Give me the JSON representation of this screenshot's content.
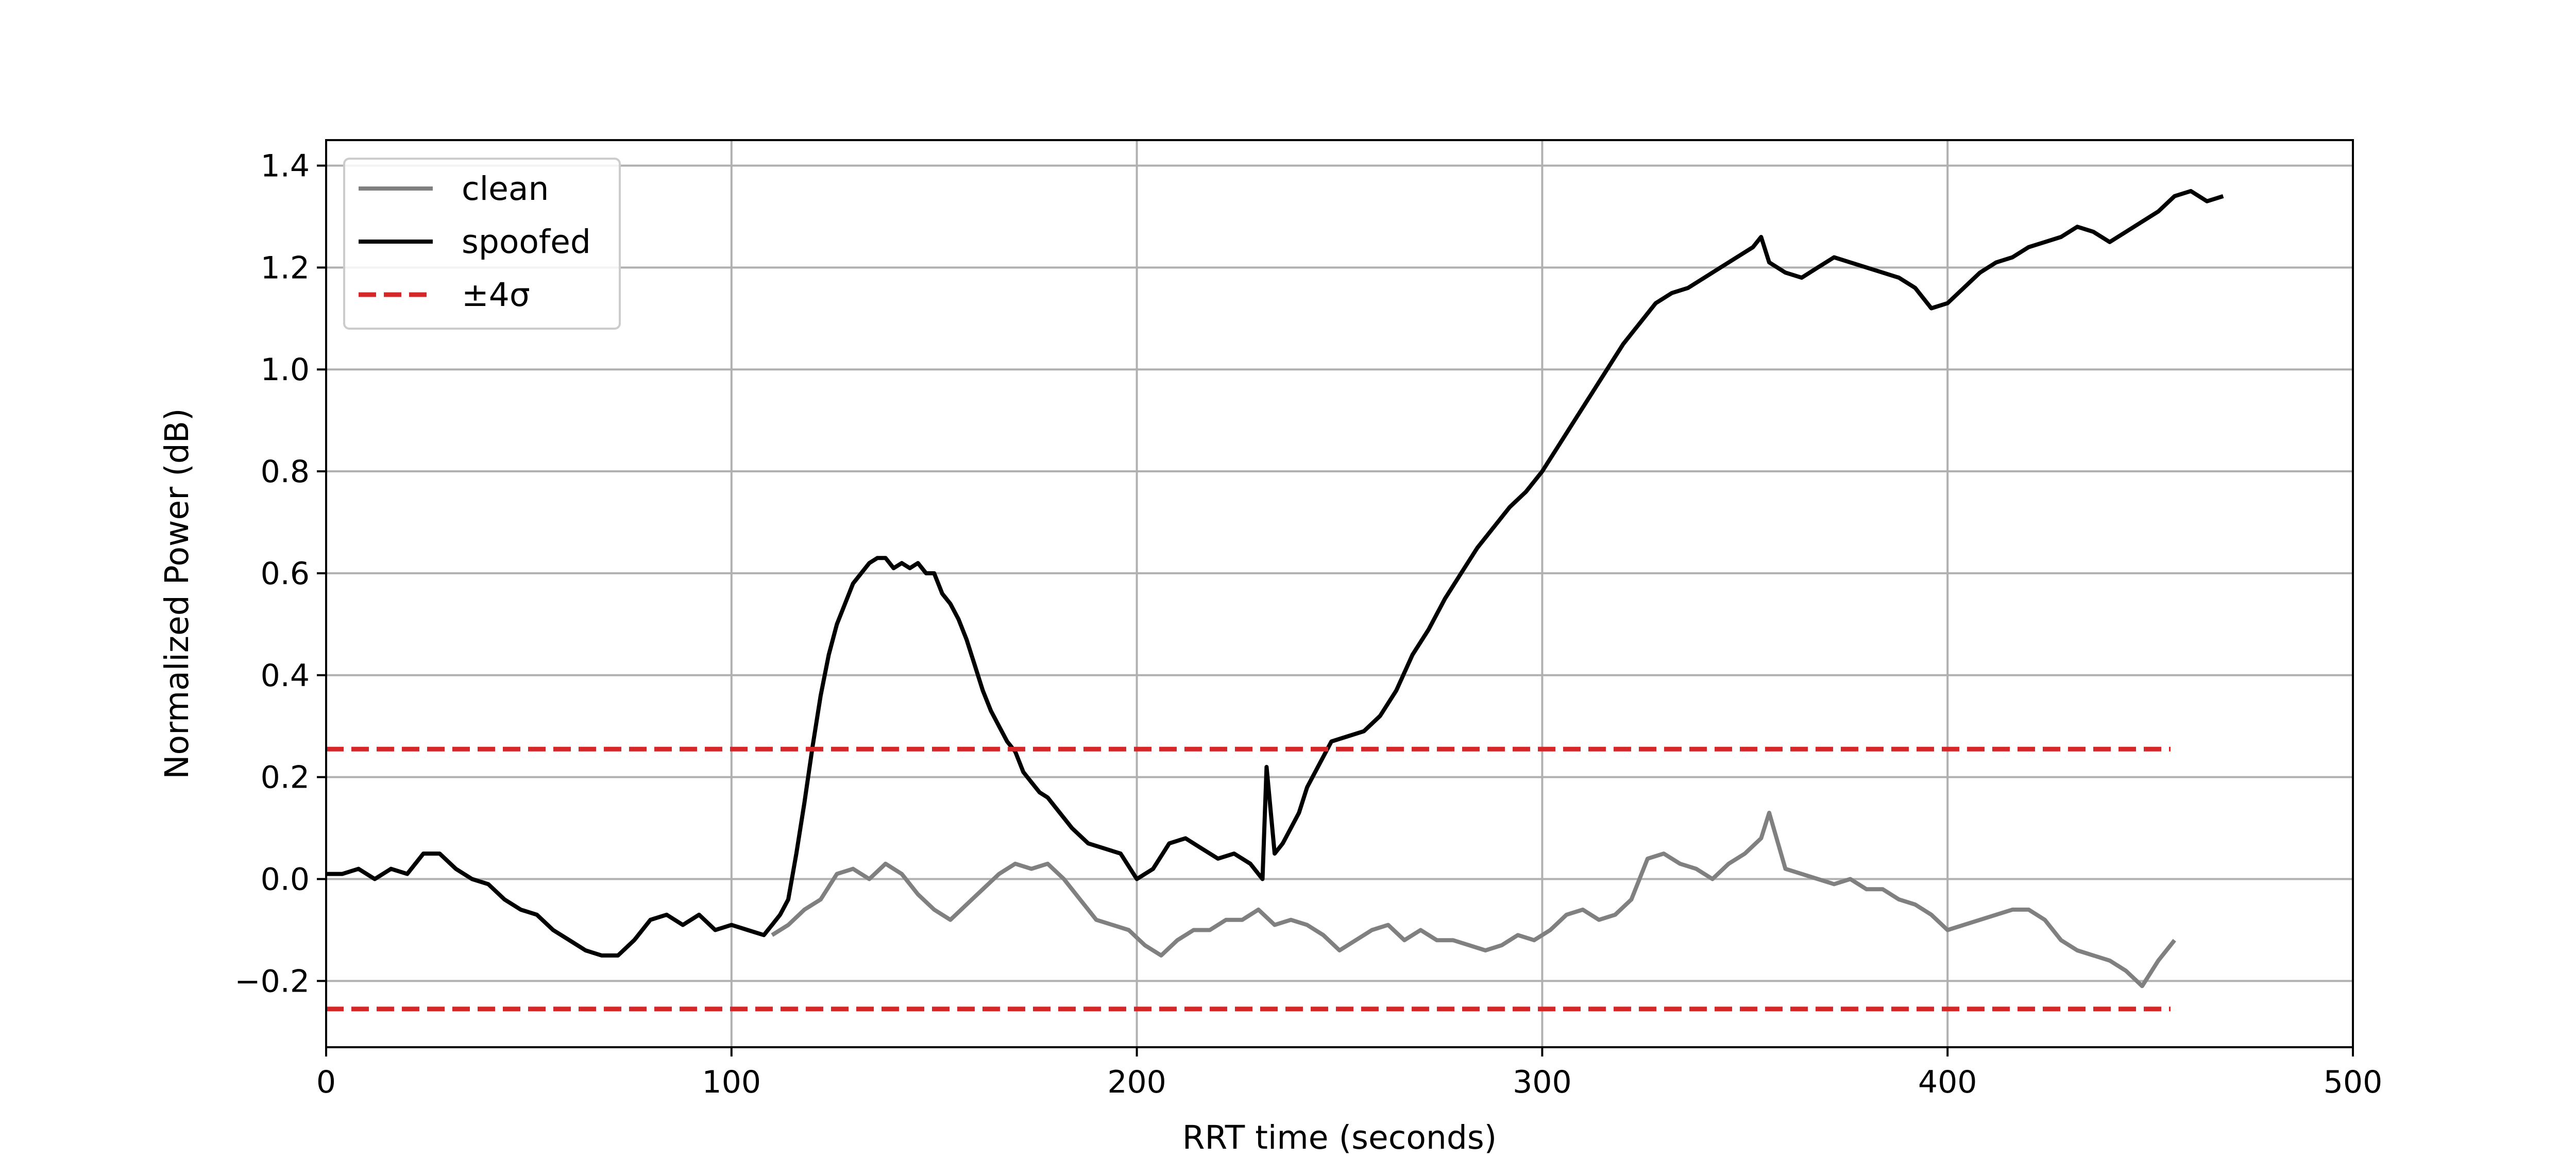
{
  "chart_data": {
    "type": "line",
    "xlabel": "RRT time (seconds)",
    "ylabel": "Normalized Power (dB)",
    "xlim": [
      0,
      500
    ],
    "ylim": [
      -0.33,
      1.45
    ],
    "xticks": [
      0,
      100,
      200,
      300,
      400,
      500
    ],
    "xtick_labels": [
      "0",
      "100",
      "200",
      "300",
      "400",
      "500"
    ],
    "yticks": [
      -0.2,
      0.0,
      0.2,
      0.4,
      0.6,
      0.8,
      1.0,
      1.2,
      1.4
    ],
    "ytick_labels": [
      "−0.2",
      "0.0",
      "0.2",
      "0.4",
      "0.6",
      "0.8",
      "1.0",
      "1.2",
      "1.4"
    ],
    "grid": true,
    "legend_position": "top-left",
    "series": [
      {
        "name": "clean",
        "color": "#808080",
        "style": "solid",
        "x": [
          110,
          114,
          118,
          122,
          126,
          130,
          134,
          138,
          142,
          146,
          150,
          154,
          158,
          162,
          166,
          170,
          174,
          178,
          182,
          186,
          190,
          194,
          198,
          202,
          206,
          210,
          214,
          218,
          222,
          226,
          230,
          234,
          238,
          242,
          246,
          250,
          254,
          258,
          262,
          266,
          270,
          274,
          278,
          282,
          286,
          290,
          294,
          298,
          302,
          306,
          310,
          314,
          318,
          322,
          326,
          330,
          334,
          338,
          342,
          346,
          350,
          354,
          356,
          360,
          364,
          368,
          372,
          376,
          380,
          384,
          388,
          392,
          396,
          400,
          404,
          408,
          412,
          416,
          420,
          424,
          428,
          432,
          436,
          440,
          444,
          448,
          452,
          456
        ],
        "y": [
          -0.11,
          -0.09,
          -0.06,
          -0.04,
          0.01,
          0.02,
          0.0,
          0.03,
          0.01,
          -0.03,
          -0.06,
          -0.08,
          -0.05,
          -0.02,
          0.01,
          0.03,
          0.02,
          0.03,
          0.0,
          -0.04,
          -0.08,
          -0.09,
          -0.1,
          -0.13,
          -0.15,
          -0.12,
          -0.1,
          -0.1,
          -0.08,
          -0.08,
          -0.06,
          -0.09,
          -0.08,
          -0.09,
          -0.11,
          -0.14,
          -0.12,
          -0.1,
          -0.09,
          -0.12,
          -0.1,
          -0.12,
          -0.12,
          -0.13,
          -0.14,
          -0.13,
          -0.11,
          -0.12,
          -0.1,
          -0.07,
          -0.06,
          -0.08,
          -0.07,
          -0.04,
          0.04,
          0.05,
          0.03,
          0.02,
          0.0,
          0.03,
          0.05,
          0.08,
          0.13,
          0.02,
          0.01,
          0.0,
          -0.01,
          0.0,
          -0.02,
          -0.02,
          -0.04,
          -0.05,
          -0.07,
          -0.1,
          -0.09,
          -0.08,
          -0.07,
          -0.06,
          -0.06,
          -0.08,
          -0.12,
          -0.14,
          -0.15,
          -0.16,
          -0.18,
          -0.21,
          -0.16,
          -0.12
        ]
      },
      {
        "name": "spoofed",
        "color": "#000000",
        "style": "solid",
        "x": [
          0,
          4,
          8,
          12,
          16,
          20,
          24,
          28,
          32,
          36,
          40,
          44,
          48,
          52,
          56,
          60,
          64,
          68,
          72,
          76,
          80,
          84,
          88,
          92,
          96,
          100,
          104,
          108,
          110,
          112,
          114,
          116,
          118,
          120,
          122,
          124,
          126,
          128,
          130,
          132,
          134,
          136,
          138,
          140,
          142,
          144,
          146,
          148,
          150,
          152,
          154,
          156,
          158,
          160,
          162,
          164,
          166,
          168,
          170,
          172,
          174,
          176,
          178,
          180,
          184,
          188,
          192,
          196,
          200,
          204,
          208,
          212,
          216,
          220,
          224,
          228,
          230,
          231,
          232,
          234,
          236,
          238,
          240,
          242,
          244,
          246,
          248,
          252,
          256,
          260,
          264,
          268,
          272,
          276,
          280,
          284,
          288,
          292,
          296,
          300,
          304,
          308,
          312,
          316,
          320,
          324,
          328,
          332,
          336,
          340,
          344,
          348,
          352,
          354,
          356,
          360,
          364,
          368,
          372,
          376,
          380,
          384,
          388,
          392,
          396,
          400,
          404,
          408,
          412,
          416,
          420,
          424,
          428,
          432,
          436,
          440,
          444,
          448,
          452,
          456,
          460,
          464,
          468
        ],
        "y": [
          0.01,
          0.01,
          0.02,
          0.0,
          0.02,
          0.01,
          0.05,
          0.05,
          0.02,
          0.0,
          -0.01,
          -0.04,
          -0.06,
          -0.07,
          -0.1,
          -0.12,
          -0.14,
          -0.15,
          -0.15,
          -0.12,
          -0.08,
          -0.07,
          -0.09,
          -0.07,
          -0.1,
          -0.09,
          -0.1,
          -0.11,
          -0.09,
          -0.07,
          -0.04,
          0.05,
          0.15,
          0.26,
          0.36,
          0.44,
          0.5,
          0.54,
          0.58,
          0.6,
          0.62,
          0.63,
          0.63,
          0.61,
          0.62,
          0.61,
          0.62,
          0.6,
          0.6,
          0.56,
          0.54,
          0.51,
          0.47,
          0.42,
          0.37,
          0.33,
          0.3,
          0.27,
          0.25,
          0.21,
          0.19,
          0.17,
          0.16,
          0.14,
          0.1,
          0.07,
          0.06,
          0.05,
          0.0,
          0.02,
          0.07,
          0.08,
          0.06,
          0.04,
          0.05,
          0.03,
          0.01,
          0.0,
          0.22,
          0.05,
          0.07,
          0.1,
          0.13,
          0.18,
          0.21,
          0.24,
          0.27,
          0.28,
          0.29,
          0.32,
          0.37,
          0.44,
          0.49,
          0.55,
          0.6,
          0.65,
          0.69,
          0.73,
          0.76,
          0.8,
          0.85,
          0.9,
          0.95,
          1.0,
          1.05,
          1.09,
          1.13,
          1.15,
          1.16,
          1.18,
          1.2,
          1.22,
          1.24,
          1.26,
          1.21,
          1.19,
          1.18,
          1.2,
          1.22,
          1.21,
          1.2,
          1.19,
          1.18,
          1.16,
          1.12,
          1.13,
          1.16,
          1.19,
          1.21,
          1.22,
          1.24,
          1.25,
          1.26,
          1.28,
          1.27,
          1.25,
          1.27,
          1.29,
          1.31,
          1.34,
          1.35,
          1.33,
          1.34
        ]
      },
      {
        "name": "±4σ",
        "color": "#d62728",
        "style": "dashed",
        "x": [
          0,
          455
        ],
        "y_levels": [
          0.255,
          -0.255
        ]
      }
    ]
  }
}
